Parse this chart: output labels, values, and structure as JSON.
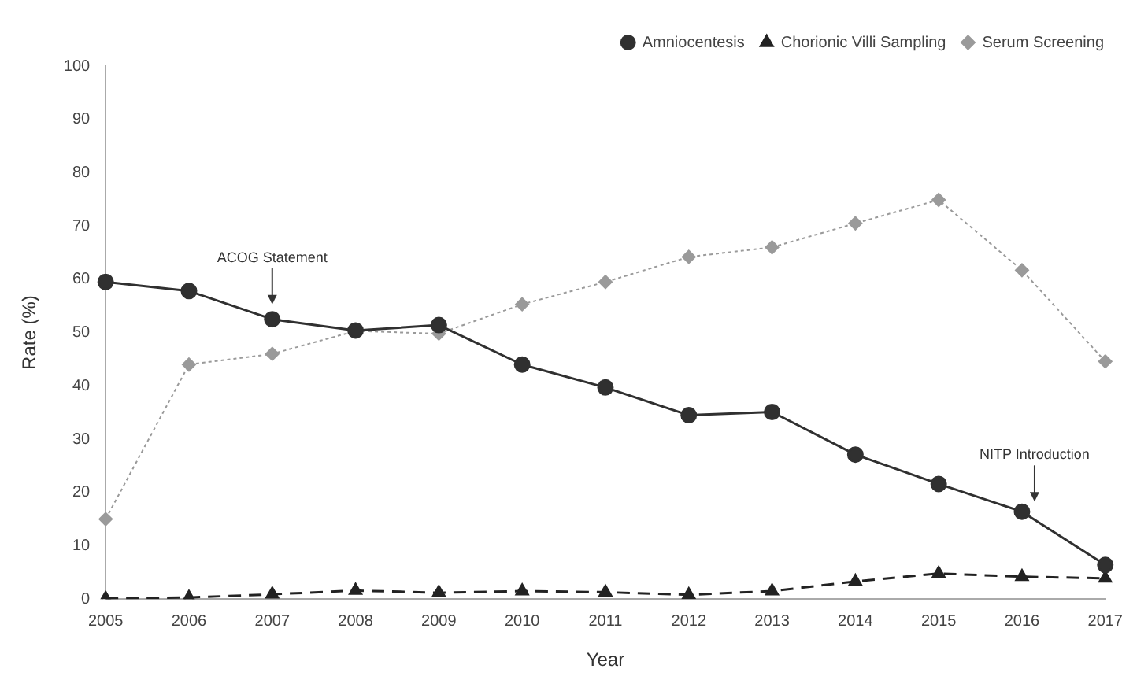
{
  "chart_data": {
    "type": "line",
    "xlabel": "Year",
    "ylabel": "Rate (%)",
    "categories": [
      "2005",
      "2006",
      "2007",
      "2008",
      "2009",
      "2010",
      "2011",
      "2012",
      "2013",
      "2014",
      "2015",
      "2016",
      "2017"
    ],
    "series": [
      {
        "name": "Amniocentesis",
        "color": "#303030",
        "marker": "circle",
        "line_style": "solid",
        "values": [
          59.5,
          57.8,
          52.5,
          50.4,
          51.4,
          44,
          39.7,
          34.5,
          35.1,
          27.1,
          21.6,
          16.4,
          6.4
        ]
      },
      {
        "name": "Chorionic Villi Sampling",
        "color": "#222222",
        "marker": "triangle",
        "line_style": "dashed",
        "values": [
          0.1,
          0.3,
          0.9,
          1.6,
          1.2,
          1.5,
          1.3,
          0.8,
          1.5,
          3.3,
          4.8,
          4.2,
          3.9
        ]
      },
      {
        "name": "Serum Screening",
        "color": "#9a9a9a",
        "marker": "diamond",
        "line_style": "dotted",
        "values": [
          15,
          44,
          46,
          50.3,
          49.8,
          55.3,
          59.5,
          64.2,
          66,
          70.5,
          74.9,
          61.7,
          44.6
        ]
      }
    ],
    "ylim": [
      0,
      100
    ],
    "yticks": [
      0,
      10,
      20,
      30,
      40,
      50,
      60,
      70,
      80,
      90,
      100
    ],
    "grid": false,
    "legend": "top right",
    "annotations": [
      {
        "text": "ACOG Statement",
        "x": "2007",
        "y": 55
      },
      {
        "text": "NITP Introduction",
        "x": "2016",
        "y": 18
      }
    ]
  }
}
